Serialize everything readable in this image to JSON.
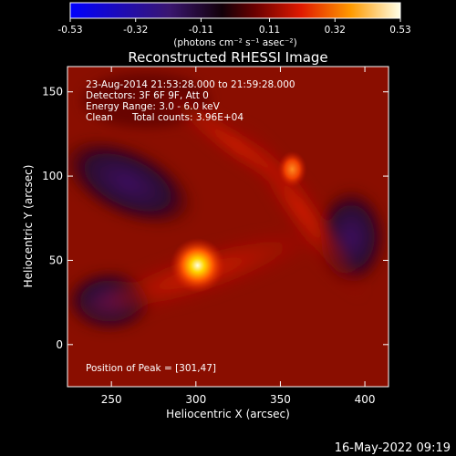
{
  "chart_data": {
    "type": "heatmap",
    "title": "Reconstructed RHESSI Image",
    "xlabel": "Heliocentric X (arcsec)",
    "ylabel": "Heliocentric Y (arcsec)",
    "xlim": [
      224,
      414
    ],
    "ylim": [
      -25,
      165
    ],
    "x_ticks": [
      250,
      300,
      350,
      400
    ],
    "y_ticks": [
      0,
      50,
      100,
      150
    ],
    "colorbar": {
      "ticks": [
        "-0.53",
        "-0.32",
        "-0.11",
        "0.11",
        "0.32",
        "0.53"
      ],
      "range": [
        -0.53,
        0.53
      ],
      "units": "(photons cm⁻² s⁻¹ asec⁻²)"
    },
    "annotations": {
      "time_range": "23-Aug-2014 21:53:28.000 to 21:59:28.000",
      "detectors": "Detectors: 3F 6F 9F, Att 0",
      "energy": "Energy Range: 3.0 - 6.0 keV",
      "clean": "Clean",
      "counts": "Total counts: 3.96E+04",
      "peak": "Position of Peak = [301,47]"
    },
    "sources": [
      {
        "x": 301,
        "y": 47,
        "value": 0.53
      },
      {
        "x": 357,
        "y": 104,
        "value": 0.32
      }
    ],
    "footer": "16-May-2022 09:19"
  }
}
